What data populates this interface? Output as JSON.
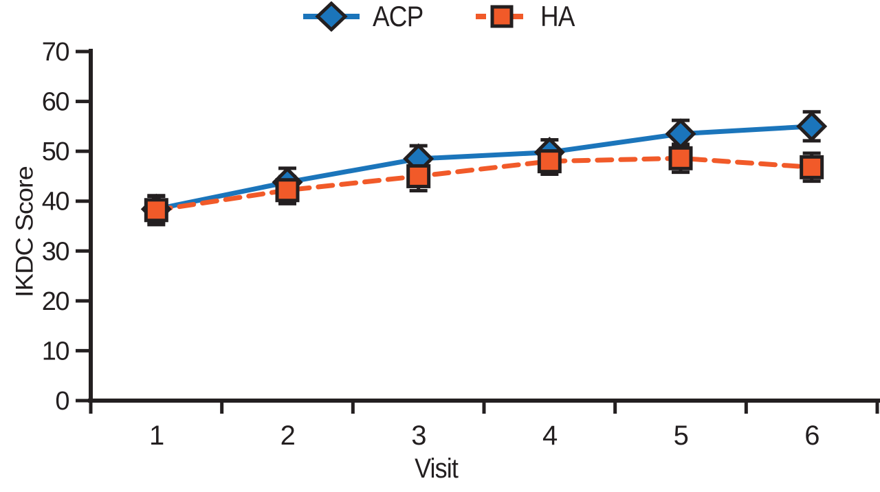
{
  "chart_data": {
    "type": "line",
    "title": "",
    "xlabel": "Visit",
    "ylabel": "IKDC Score",
    "categories": [
      "1",
      "2",
      "3",
      "4",
      "5",
      "6"
    ],
    "ylim": [
      0,
      70
    ],
    "yticks": [
      0,
      10,
      20,
      30,
      40,
      50,
      60,
      70
    ],
    "grid": false,
    "legend_position": "top-center",
    "axis_color": "#231f20",
    "error_bar_color": "#231f20",
    "series": [
      {
        "name": "ACP",
        "marker": "diamond",
        "line_style": "solid",
        "color": "#1b75bb",
        "values": [
          38.4,
          43.8,
          48.5,
          49.8,
          53.5,
          55.0
        ],
        "errors": [
          2.6,
          2.8,
          2.6,
          2.5,
          2.7,
          2.9
        ]
      },
      {
        "name": "HA",
        "marker": "square",
        "line_style": "dashed",
        "color": "#f15a29",
        "values": [
          38.2,
          42.2,
          45.0,
          48.0,
          48.6,
          46.8
        ],
        "errors": [
          2.9,
          2.7,
          2.9,
          2.6,
          2.8,
          2.8
        ]
      }
    ]
  }
}
